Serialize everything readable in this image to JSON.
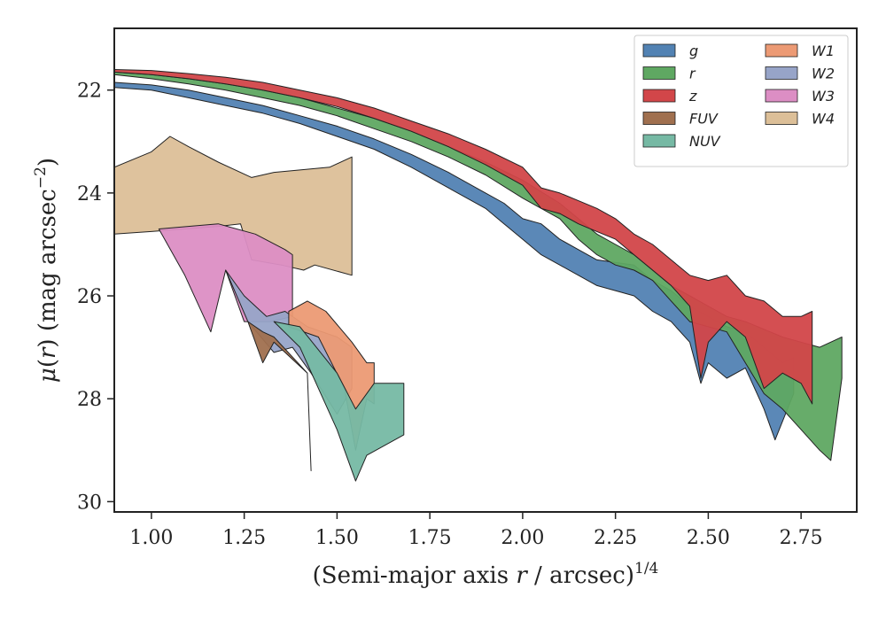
{
  "chart_data": {
    "type": "area",
    "title": "",
    "xlabel_main": "(Semi-major axis ",
    "xlabel_var": "r",
    "xlabel_rest": " / arcsec)",
    "xlabel_sup": "1/4",
    "ylabel_mu": "μ",
    "ylabel_open": "(",
    "ylabel_var": "r",
    "ylabel_rest": ") (mag arcsec",
    "ylabel_sup": "−2",
    "ylabel_close": ")",
    "xlim": [
      0.9,
      2.9
    ],
    "ylim": [
      30.2,
      20.8
    ],
    "y_inverted": true,
    "grid": false,
    "legend_position": "top-right",
    "x_ticks": [
      1.0,
      1.25,
      1.5,
      1.75,
      2.0,
      2.25,
      2.5,
      2.75
    ],
    "x_tick_labels": [
      "1.00",
      "1.25",
      "1.50",
      "1.75",
      "2.00",
      "2.25",
      "2.50",
      "2.75"
    ],
    "y_ticks": [
      22,
      24,
      26,
      28,
      30
    ],
    "y_tick_labels": [
      "22",
      "24",
      "26",
      "28",
      "30"
    ],
    "series": [
      {
        "name": "W4",
        "color": "#dcbf98",
        "upper": [
          [
            0.9,
            23.5
          ],
          [
            1.0,
            23.2
          ],
          [
            1.05,
            22.9
          ],
          [
            1.1,
            23.1
          ],
          [
            1.18,
            23.4
          ],
          [
            1.27,
            23.7
          ],
          [
            1.33,
            23.6
          ],
          [
            1.48,
            23.5
          ],
          [
            1.54,
            23.3
          ]
        ],
        "lower": [
          [
            0.9,
            24.8
          ],
          [
            1.0,
            24.75
          ],
          [
            1.18,
            24.65
          ],
          [
            1.24,
            24.6
          ],
          [
            1.27,
            25.3
          ],
          [
            1.35,
            25.4
          ],
          [
            1.41,
            25.5
          ],
          [
            1.44,
            25.4
          ],
          [
            1.54,
            25.6
          ]
        ]
      },
      {
        "name": "W3",
        "color": "#dc8ec4",
        "upper": [
          [
            1.02,
            24.7
          ],
          [
            1.18,
            24.6
          ],
          [
            1.28,
            24.8
          ],
          [
            1.36,
            25.1
          ],
          [
            1.38,
            25.2
          ]
        ],
        "lower": [
          [
            1.02,
            24.7
          ],
          [
            1.09,
            25.6
          ],
          [
            1.16,
            26.7
          ],
          [
            1.2,
            25.5
          ],
          [
            1.25,
            26.5
          ],
          [
            1.32,
            26.5
          ],
          [
            1.38,
            26.4
          ]
        ]
      },
      {
        "name": "W2",
        "color": "#97a4c8",
        "upper": [
          [
            1.2,
            25.5
          ],
          [
            1.25,
            26.0
          ],
          [
            1.31,
            26.4
          ],
          [
            1.36,
            26.3
          ],
          [
            1.42,
            26.6
          ],
          [
            1.5,
            26.8
          ],
          [
            1.54,
            27.0
          ]
        ],
        "lower": [
          [
            1.2,
            25.5
          ],
          [
            1.26,
            26.5
          ],
          [
            1.33,
            27.1
          ],
          [
            1.38,
            27.0
          ],
          [
            1.43,
            27.5
          ],
          [
            1.5,
            28.3
          ],
          [
            1.54,
            27.8
          ]
        ]
      },
      {
        "name": "W1",
        "color": "#ec9a74",
        "upper": [
          [
            1.37,
            26.3
          ],
          [
            1.42,
            26.1
          ],
          [
            1.47,
            26.3
          ],
          [
            1.54,
            26.9
          ],
          [
            1.58,
            27.3
          ],
          [
            1.6,
            27.3
          ]
        ],
        "lower": [
          [
            1.37,
            26.6
          ],
          [
            1.45,
            26.8
          ],
          [
            1.52,
            27.8
          ],
          [
            1.55,
            29.0
          ],
          [
            1.58,
            28.0
          ],
          [
            1.6,
            28.1
          ]
        ]
      },
      {
        "name": "NUV",
        "color": "#76b9a4",
        "upper": [
          [
            1.33,
            26.5
          ],
          [
            1.4,
            26.6
          ],
          [
            1.5,
            27.5
          ],
          [
            1.55,
            28.2
          ],
          [
            1.6,
            27.7
          ],
          [
            1.68,
            27.7
          ]
        ],
        "lower": [
          [
            1.33,
            26.5
          ],
          [
            1.4,
            27.0
          ],
          [
            1.45,
            27.8
          ],
          [
            1.5,
            28.6
          ],
          [
            1.55,
            29.6
          ],
          [
            1.58,
            29.1
          ],
          [
            1.68,
            28.7
          ]
        ]
      },
      {
        "name": "FUV",
        "color": "#a0704f",
        "upper": [
          [
            1.26,
            26.5
          ],
          [
            1.3,
            26.7
          ],
          [
            1.33,
            26.8
          ],
          [
            1.42,
            27.5
          ]
        ],
        "lower": [
          [
            1.26,
            26.5
          ],
          [
            1.3,
            27.3
          ],
          [
            1.33,
            26.9
          ],
          [
            1.42,
            27.5
          ],
          [
            1.43,
            29.4
          ]
        ]
      },
      {
        "name": "g",
        "color": "#5282b3",
        "upper": [
          [
            0.9,
            21.85
          ],
          [
            1.0,
            21.9
          ],
          [
            1.1,
            22.0
          ],
          [
            1.2,
            22.15
          ],
          [
            1.3,
            22.3
          ],
          [
            1.4,
            22.5
          ],
          [
            1.5,
            22.7
          ],
          [
            1.6,
            22.95
          ],
          [
            1.7,
            23.25
          ],
          [
            1.8,
            23.6
          ],
          [
            1.9,
            24.0
          ],
          [
            1.95,
            24.2
          ],
          [
            2.0,
            24.5
          ],
          [
            2.05,
            24.6
          ],
          [
            2.1,
            24.9
          ],
          [
            2.15,
            25.1
          ],
          [
            2.2,
            25.3
          ],
          [
            2.3,
            25.4
          ],
          [
            2.35,
            25.7
          ],
          [
            2.4,
            25.9
          ],
          [
            2.45,
            26.2
          ],
          [
            2.5,
            26.4
          ],
          [
            2.55,
            26.6
          ],
          [
            2.6,
            26.7
          ],
          [
            2.65,
            27.0
          ],
          [
            2.7,
            27.3
          ],
          [
            2.73,
            27.2
          ]
        ],
        "lower": [
          [
            0.9,
            21.95
          ],
          [
            1.0,
            22.0
          ],
          [
            1.1,
            22.15
          ],
          [
            1.2,
            22.3
          ],
          [
            1.3,
            22.45
          ],
          [
            1.4,
            22.65
          ],
          [
            1.5,
            22.9
          ],
          [
            1.6,
            23.15
          ],
          [
            1.7,
            23.5
          ],
          [
            1.8,
            23.9
          ],
          [
            1.9,
            24.3
          ],
          [
            1.95,
            24.6
          ],
          [
            2.0,
            24.9
          ],
          [
            2.05,
            25.2
          ],
          [
            2.1,
            25.4
          ],
          [
            2.15,
            25.6
          ],
          [
            2.2,
            25.8
          ],
          [
            2.3,
            26.0
          ],
          [
            2.35,
            26.3
          ],
          [
            2.4,
            26.5
          ],
          [
            2.45,
            26.9
          ],
          [
            2.48,
            27.7
          ],
          [
            2.5,
            27.3
          ],
          [
            2.55,
            27.6
          ],
          [
            2.6,
            27.4
          ],
          [
            2.65,
            28.2
          ],
          [
            2.68,
            28.8
          ],
          [
            2.73,
            27.9
          ]
        ]
      },
      {
        "name": "r",
        "color": "#5fa862",
        "upper": [
          [
            0.9,
            21.65
          ],
          [
            1.0,
            21.7
          ],
          [
            1.1,
            21.78
          ],
          [
            1.2,
            21.88
          ],
          [
            1.3,
            22.0
          ],
          [
            1.4,
            22.15
          ],
          [
            1.5,
            22.35
          ],
          [
            1.6,
            22.55
          ],
          [
            1.7,
            22.8
          ],
          [
            1.8,
            23.1
          ],
          [
            1.9,
            23.4
          ],
          [
            2.0,
            23.75
          ],
          [
            2.1,
            24.2
          ],
          [
            2.15,
            24.5
          ],
          [
            2.2,
            24.8
          ],
          [
            2.25,
            25.0
          ],
          [
            2.3,
            25.2
          ],
          [
            2.35,
            25.5
          ],
          [
            2.4,
            25.8
          ],
          [
            2.45,
            26.0
          ],
          [
            2.5,
            26.2
          ],
          [
            2.55,
            26.4
          ],
          [
            2.6,
            26.5
          ],
          [
            2.7,
            26.8
          ],
          [
            2.8,
            27.0
          ],
          [
            2.86,
            26.8
          ]
        ],
        "lower": [
          [
            0.9,
            21.7
          ],
          [
            1.0,
            21.78
          ],
          [
            1.1,
            21.88
          ],
          [
            1.2,
            22.0
          ],
          [
            1.3,
            22.15
          ],
          [
            1.4,
            22.3
          ],
          [
            1.5,
            22.5
          ],
          [
            1.6,
            22.75
          ],
          [
            1.7,
            23.0
          ],
          [
            1.8,
            23.3
          ],
          [
            1.9,
            23.65
          ],
          [
            2.0,
            24.1
          ],
          [
            2.1,
            24.5
          ],
          [
            2.15,
            24.9
          ],
          [
            2.2,
            25.2
          ],
          [
            2.25,
            25.4
          ],
          [
            2.3,
            25.5
          ],
          [
            2.35,
            25.7
          ],
          [
            2.4,
            26.1
          ],
          [
            2.45,
            26.5
          ],
          [
            2.5,
            26.6
          ],
          [
            2.55,
            26.7
          ],
          [
            2.6,
            27.3
          ],
          [
            2.65,
            27.9
          ],
          [
            2.7,
            28.2
          ],
          [
            2.75,
            28.6
          ],
          [
            2.8,
            29.0
          ],
          [
            2.83,
            29.2
          ],
          [
            2.86,
            27.6
          ]
        ]
      },
      {
        "name": "z",
        "color": "#d24649",
        "upper": [
          [
            0.9,
            21.6
          ],
          [
            1.0,
            21.62
          ],
          [
            1.1,
            21.68
          ],
          [
            1.2,
            21.75
          ],
          [
            1.3,
            21.85
          ],
          [
            1.4,
            22.0
          ],
          [
            1.5,
            22.15
          ],
          [
            1.6,
            22.35
          ],
          [
            1.7,
            22.6
          ],
          [
            1.8,
            22.85
          ],
          [
            1.9,
            23.15
          ],
          [
            2.0,
            23.5
          ],
          [
            2.05,
            23.9
          ],
          [
            2.1,
            24.0
          ],
          [
            2.15,
            24.15
          ],
          [
            2.2,
            24.3
          ],
          [
            2.25,
            24.5
          ],
          [
            2.3,
            24.8
          ],
          [
            2.35,
            25.0
          ],
          [
            2.4,
            25.3
          ],
          [
            2.45,
            25.6
          ],
          [
            2.5,
            25.7
          ],
          [
            2.55,
            25.6
          ],
          [
            2.6,
            26.0
          ],
          [
            2.65,
            26.1
          ],
          [
            2.7,
            26.4
          ],
          [
            2.75,
            26.4
          ],
          [
            2.78,
            26.3
          ]
        ],
        "lower": [
          [
            0.9,
            21.65
          ],
          [
            1.0,
            21.7
          ],
          [
            1.1,
            21.78
          ],
          [
            1.2,
            21.88
          ],
          [
            1.3,
            22.0
          ],
          [
            1.4,
            22.15
          ],
          [
            1.5,
            22.32
          ],
          [
            1.6,
            22.55
          ],
          [
            1.7,
            22.8
          ],
          [
            1.8,
            23.1
          ],
          [
            1.9,
            23.45
          ],
          [
            2.0,
            23.85
          ],
          [
            2.05,
            24.3
          ],
          [
            2.1,
            24.4
          ],
          [
            2.15,
            24.6
          ],
          [
            2.2,
            24.75
          ],
          [
            2.25,
            24.9
          ],
          [
            2.3,
            25.2
          ],
          [
            2.35,
            25.5
          ],
          [
            2.4,
            25.8
          ],
          [
            2.45,
            26.2
          ],
          [
            2.48,
            27.6
          ],
          [
            2.5,
            26.9
          ],
          [
            2.55,
            26.5
          ],
          [
            2.6,
            26.8
          ],
          [
            2.65,
            27.8
          ],
          [
            2.7,
            27.5
          ],
          [
            2.75,
            27.7
          ],
          [
            2.78,
            28.1
          ]
        ]
      }
    ],
    "legend": [
      {
        "label": "g",
        "color": "#5282b3"
      },
      {
        "label": "r",
        "color": "#5fa862"
      },
      {
        "label": "z",
        "color": "#d24649"
      },
      {
        "label": "FUV",
        "color": "#a0704f"
      },
      {
        "label": "NUV",
        "color": "#76b9a4"
      },
      {
        "label": "W1",
        "color": "#ec9a74"
      },
      {
        "label": "W2",
        "color": "#97a4c8"
      },
      {
        "label": "W3",
        "color": "#dc8ec4"
      },
      {
        "label": "W4",
        "color": "#dcbf98"
      }
    ]
  }
}
